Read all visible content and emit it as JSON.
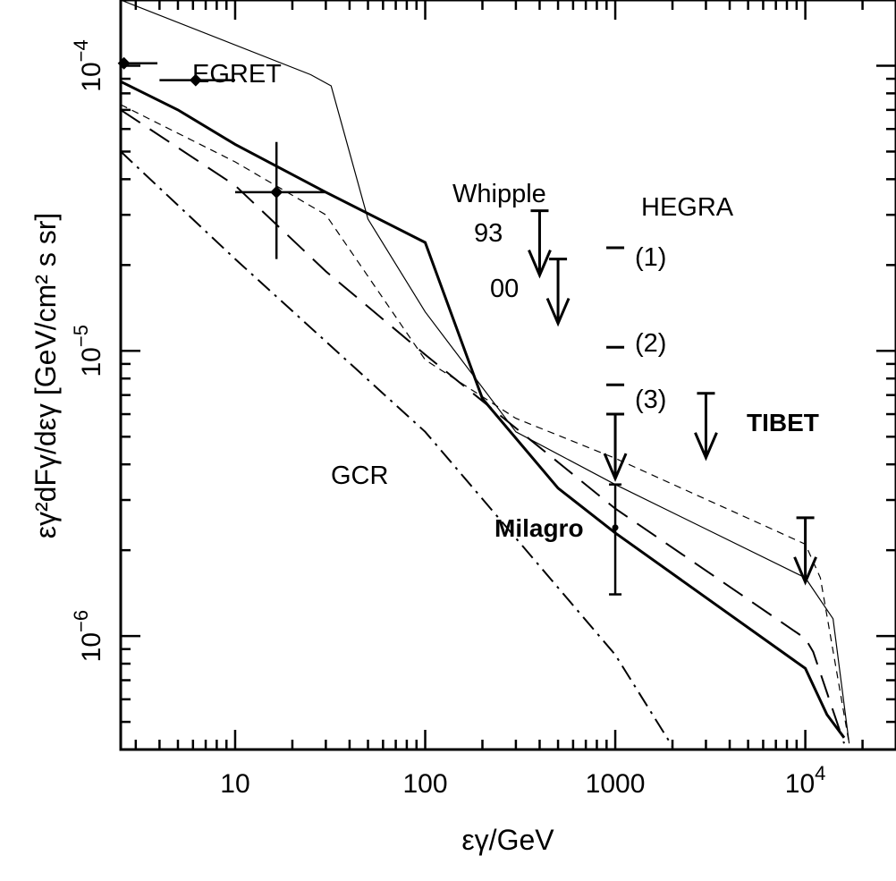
{
  "chart_data": {
    "type": "line",
    "x_scale": "log",
    "y_scale": "log",
    "xlim": [
      2.5,
      30000
    ],
    "ylim": [
      4e-07,
      0.00017
    ],
    "xlabel": "εγ/GeV",
    "ylabel": "εγ²dFγ/dεγ  [GeV/cm² s sr]",
    "x_ticks": [
      {
        "value": 10,
        "label": "10"
      },
      {
        "value": 100,
        "label": "100"
      },
      {
        "value": 1000,
        "label": "1000"
      },
      {
        "value": 10000,
        "label": "10",
        "exponent": "4"
      }
    ],
    "y_ticks": [
      {
        "value": 1e-06,
        "label": "10",
        "exponent": "−6"
      },
      {
        "value": 1e-05,
        "label": "10",
        "exponent": "−5"
      },
      {
        "value": 0.0001,
        "label": "10",
        "exponent": "−4"
      }
    ],
    "series": [
      {
        "style": "thin-solid",
        "x": [
          2.5,
          25,
          32,
          50,
          100,
          300,
          1000,
          10000,
          14000,
          17000
        ],
        "y": [
          0.00017,
          9.3e-05,
          8.5e-05,
          2.9e-05,
          1.37e-05,
          5.2e-06,
          3.4e-06,
          1.6e-06,
          1.15e-06,
          4.2e-07
        ]
      },
      {
        "style": "thick-solid",
        "x": [
          2.5,
          5,
          10,
          30,
          100,
          200,
          500,
          1000,
          10000,
          13000,
          16000
        ],
        "y": [
          8.8e-05,
          7e-05,
          5.3e-05,
          3.6e-05,
          2.4e-05,
          6.8e-06,
          3.3e-06,
          2.3e-06,
          7.7e-07,
          5.3e-07,
          4.4e-07
        ]
      },
      {
        "style": "thin-dashed",
        "x": [
          2.5,
          10,
          30,
          100,
          300,
          1000,
          10000,
          12000,
          17000
        ],
        "y": [
          7.3e-05,
          4.6e-05,
          3e-05,
          9.3e-06,
          5.8e-06,
          4.2e-06,
          2.1e-06,
          1.6e-06,
          4.2e-07
        ]
      },
      {
        "style": "long-dashed",
        "x": [
          2.5,
          10,
          30,
          100,
          1000,
          10000,
          11000,
          16000
        ],
        "y": [
          7e-05,
          3.8e-05,
          1.9e-05,
          9.7e-06,
          2.8e-06,
          9.8e-07,
          8.8e-07,
          4.2e-07
        ]
      },
      {
        "style": "dash-dot",
        "name": "GCR",
        "x": [
          2.5,
          10,
          100,
          1000,
          2000
        ],
        "y": [
          5e-05,
          2.1e-05,
          5.2e-06,
          8.6e-07,
          4.1e-07
        ]
      }
    ],
    "points": [
      {
        "name": "EGRET",
        "x": 2.6,
        "y": 0.000102,
        "xerr": [
          2.5,
          3.9
        ]
      },
      {
        "name": "EGRET",
        "x": 6.2,
        "y": 8.9e-05,
        "xerr": [
          4.0,
          10.0
        ]
      },
      {
        "name": "EGRET",
        "x": 16.5,
        "y": 3.6e-05,
        "xerr": [
          10.0,
          30.0
        ],
        "yerr": [
          2.1e-05,
          5.4e-05
        ]
      },
      {
        "name": "Milagro",
        "x": 1000,
        "y": 2.4e-06,
        "yerr": [
          1.4e-06,
          3.4e-06
        ]
      }
    ],
    "upper_limits": [
      {
        "name": "Whipple 93",
        "x": 400,
        "y": 3.1e-05
      },
      {
        "name": "Whipple 00",
        "x": 500,
        "y": 2.1e-05
      },
      {
        "name": "HEGRA",
        "x": 1000,
        "y": 6e-06
      },
      {
        "name": "TIBET",
        "x": 3000,
        "y": 7.1e-06
      },
      {
        "name": "TIBET",
        "x": 10000,
        "y": 2.6e-06
      }
    ],
    "hegra_marks": [
      {
        "label": "(1)",
        "x": 1000,
        "y": 2.3e-05
      },
      {
        "label": "(2)",
        "x": 1000,
        "y": 1.03e-05
      },
      {
        "label": "(3)",
        "x": 1000,
        "y": 7.6e-06
      }
    ],
    "annotations": {
      "egret": "EGRET",
      "whipple": "Whipple",
      "whipple_93": "93",
      "whipple_00": "00",
      "hegra": "HEGRA",
      "tibet": "TIBET",
      "gcr": "GCR",
      "milagro": "Milagro"
    }
  }
}
